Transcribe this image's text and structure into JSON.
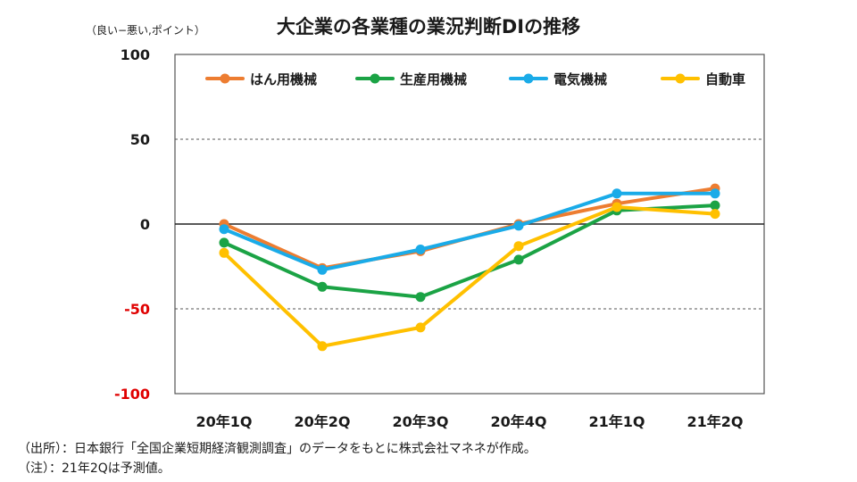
{
  "chart_data": {
    "type": "line",
    "title": "大企業の各業種の業況判断DIの推移",
    "ylabel": "（良い−悪い,ポイント）",
    "xlabel": "",
    "categories": [
      "20年1Q",
      "20年2Q",
      "20年3Q",
      "20年4Q",
      "21年1Q",
      "21年2Q"
    ],
    "ylim": [
      -100,
      100
    ],
    "yticks": [
      100,
      50,
      0,
      -50,
      -100
    ],
    "ytick_labels": [
      "100",
      "50",
      "0",
      "-50",
      "-100"
    ],
    "grid": "dashed horizontal at 50 and -50",
    "legend_position": "top",
    "series": [
      {
        "name": "はん用機械",
        "color": "#ED7D31",
        "values": [
          0,
          -26,
          -16,
          0,
          12,
          21
        ]
      },
      {
        "name": "生産用機械",
        "color": "#1BA345",
        "values": [
          -11,
          -37,
          -43,
          -21,
          8,
          11
        ]
      },
      {
        "name": "電気機械",
        "color": "#1AABE8",
        "values": [
          -3,
          -27,
          -15,
          -1,
          18,
          18
        ]
      },
      {
        "name": "自動車",
        "color": "#FFC000",
        "values": [
          -17,
          -72,
          -61,
          -13,
          10,
          6
        ]
      }
    ],
    "negative_tick_color": "#E00000"
  },
  "notes": {
    "source": "（出所）：日本銀行「全国企業短期経済観測調査」のデータをもとに株式会社マネネが作成。",
    "estimate": "（注）：21年2Qは予測値。"
  }
}
